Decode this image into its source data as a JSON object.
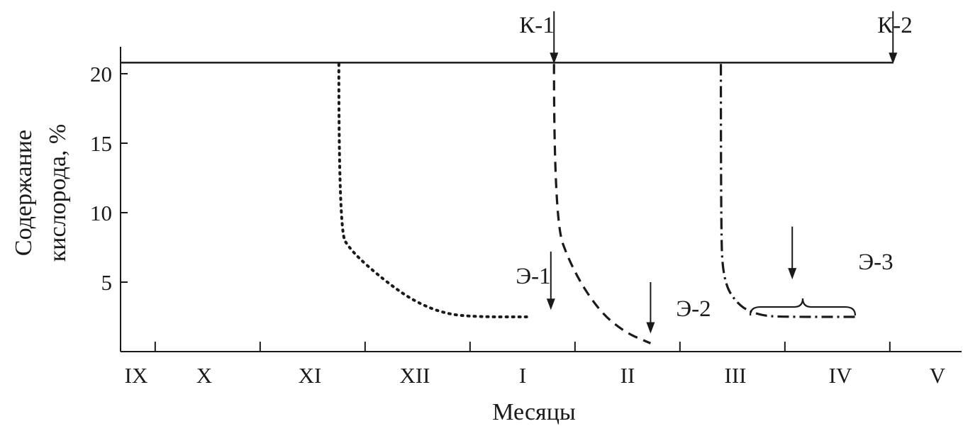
{
  "chart_data": {
    "type": "line",
    "title": "",
    "xlabel": "Месяцы",
    "ylabel_line1": "Содержание",
    "ylabel_line2": "кислорода, %",
    "ylim": [
      0,
      22
    ],
    "yticks": [
      5,
      10,
      15,
      20
    ],
    "months": [
      "IX",
      "X",
      "XI",
      "XII",
      "I",
      "II",
      "III",
      "IV",
      "V"
    ],
    "x_unit": "month index (0 = start of IX)",
    "grid": false,
    "series": [
      {
        "style": "dotted",
        "points": [
          [
            2.08,
            20.7
          ],
          [
            2.08,
            8.7
          ],
          [
            2.2,
            7.2
          ],
          [
            2.5,
            5.2
          ],
          [
            2.8,
            3.6
          ],
          [
            3.1,
            2.7
          ],
          [
            3.4,
            2.5
          ],
          [
            3.9,
            2.5
          ]
        ]
      },
      {
        "style": "dashed",
        "points": [
          [
            4.13,
            20.7
          ],
          [
            4.13,
            9.5
          ],
          [
            4.3,
            6.0
          ],
          [
            4.55,
            3.0
          ],
          [
            4.8,
            1.4
          ],
          [
            5.05,
            0.6
          ]
        ]
      },
      {
        "style": "dashdot",
        "points": [
          [
            5.72,
            20.7
          ],
          [
            5.72,
            9.4
          ],
          [
            5.74,
            5.0
          ],
          [
            5.9,
            3.2
          ],
          [
            6.1,
            2.6
          ],
          [
            6.3,
            2.5
          ],
          [
            7.0,
            2.5
          ]
        ]
      }
    ],
    "reference_line": {
      "y": 20.8,
      "x_range": [
        0,
        7.36
      ]
    },
    "annotations": [
      {
        "id": "k1",
        "text": "К-1",
        "x": 4.13,
        "y_from": 24.5,
        "y_to": 20.7
      },
      {
        "id": "k2",
        "text": "К-2",
        "x": 7.36,
        "y_from": 24.5,
        "y_to": 20.7
      },
      {
        "id": "e1",
        "text": "Э-1",
        "x": 4.1,
        "y_from": 7.2,
        "y_to": 3.0
      },
      {
        "id": "e2",
        "text": "Э-2",
        "x": 5.05,
        "y_from": 5.0,
        "y_to": 1.3
      },
      {
        "id": "e3",
        "text": "Э-3",
        "x": 6.4,
        "y_from": 9.0,
        "y_to": 5.2
      }
    ],
    "brace": {
      "x_range": [
        6.0,
        7.0
      ],
      "y": 2.6
    }
  }
}
